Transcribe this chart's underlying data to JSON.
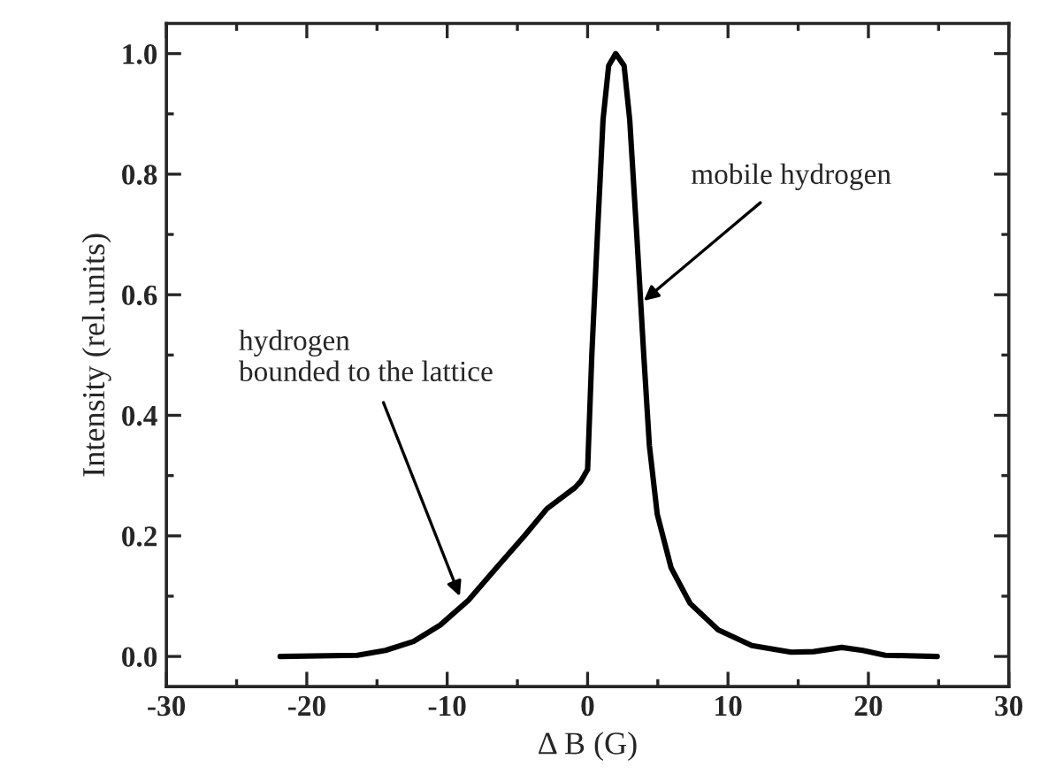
{
  "chart_data": {
    "type": "line",
    "xlabel": "Δ B (G)",
    "ylabel": "Intensity (rel.units)",
    "xlim": [
      -30,
      30
    ],
    "xticks": [
      -30,
      -20,
      -10,
      0,
      10,
      20,
      30
    ],
    "ylim": [
      -0.05,
      1.05
    ],
    "yticks": [
      {
        "value": 0,
        "label": "0.0"
      },
      {
        "value": 0.2,
        "label": "0.2"
      },
      {
        "value": 0.4,
        "label": "0.4"
      },
      {
        "value": 0.6,
        "label": "0.6"
      },
      {
        "value": 0.8,
        "label": "0.8"
      },
      {
        "value": 1.0,
        "label": "1.0"
      }
    ],
    "grid": false,
    "legend": false,
    "marker": "none",
    "line_style": "solid",
    "series": [
      {
        "color": "#000000",
        "x": [
          -21.9,
          -16.4,
          -14.4,
          -12.4,
          -10.5,
          -8.5,
          -6.5,
          -4.5,
          -2.9,
          -0.9,
          -0.5,
          0,
          0.3,
          0.7,
          1.1,
          1.5,
          2.0,
          2.6,
          3.0,
          3.5,
          4.0,
          4.4,
          4.96,
          5.95,
          7.3,
          9.3,
          11.7,
          14.5,
          16.1,
          18.1,
          19.6,
          21.2,
          24.9
        ],
        "values": [
          0,
          0.002,
          0.01,
          0.025,
          0.052,
          0.093,
          0.147,
          0.2,
          0.245,
          0.28,
          0.29,
          0.31,
          0.5,
          0.7,
          0.89,
          0.98,
          1.0,
          0.98,
          0.89,
          0.7,
          0.5,
          0.35,
          0.236,
          0.147,
          0.088,
          0.044,
          0.018,
          0.007,
          0.008,
          0.015,
          0.01,
          0.002,
          0
        ]
      }
    ],
    "annotations": [
      {
        "text": "mobile hydrogen",
        "x": 4.0,
        "y": 0.59
      },
      {
        "text": "hydrogen\nbounded to the lattice",
        "x": -9.1,
        "y": 0.1
      }
    ]
  }
}
